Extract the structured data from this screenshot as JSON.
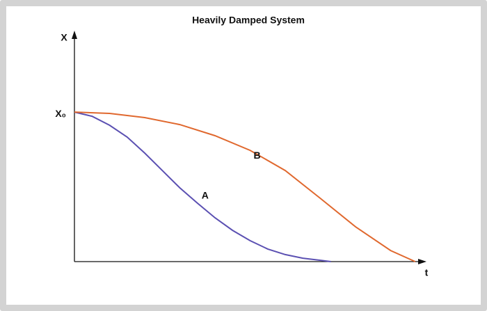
{
  "chart_data": {
    "type": "line",
    "title": "Heavily Damped System",
    "x_label": "t",
    "y_label": "X",
    "xlim": [
      0,
      10
    ],
    "ylim": [
      0,
      1.54
    ],
    "yticks": [
      {
        "value": 1,
        "label": "X₀"
      }
    ],
    "series": [
      {
        "name": "A",
        "color": "#5b50b2",
        "x": [
          0,
          0.5,
          1,
          1.5,
          2,
          2.5,
          3,
          3.5,
          4,
          4.5,
          5,
          5.5,
          6,
          6.5,
          7,
          7.3
        ],
        "values": [
          1,
          0.972,
          0.912,
          0.833,
          0.726,
          0.609,
          0.493,
          0.391,
          0.293,
          0.209,
          0.14,
          0.084,
          0.047,
          0.023,
          0.009,
          0
        ]
      },
      {
        "name": "B",
        "color": "#e0682e",
        "x": [
          0,
          1,
          2,
          3,
          4,
          5,
          6,
          7,
          8,
          9,
          9.7
        ],
        "values": [
          1,
          0.991,
          0.963,
          0.916,
          0.842,
          0.744,
          0.609,
          0.423,
          0.233,
          0.074,
          0
        ]
      }
    ]
  }
}
